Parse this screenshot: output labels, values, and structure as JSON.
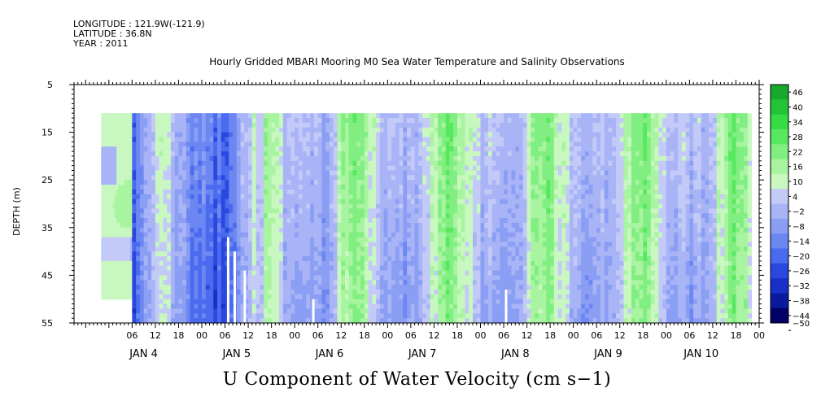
{
  "meta": {
    "longitude": "LONGITUDE : 121.9W(-121.9)",
    "latitude": "LATITUDE : 36.8N",
    "year": "YEAR : 2011"
  },
  "colors": {
    "negative_ramp": [
      "#000066",
      "#0a1a9c",
      "#1830c8",
      "#2a48e0",
      "#4a6af0",
      "#6c86f2",
      "#8a9ef4",
      "#a8b4f6",
      "#c4caf8"
    ],
    "positive_ramp": [
      "#c8f8c0",
      "#a8f4a0",
      "#80ee80",
      "#58e860",
      "#36dc44",
      "#22c436",
      "#18a82c",
      "#108a22",
      "#0a6a18",
      "#054a10"
    ]
  },
  "chart_data": {
    "type": "heatmap",
    "title": "Hourly Gridded MBARI Mooring M0 Sea Water Temperature and Salinity Observations",
    "xlabel": "U Component of Water Velocity (cm s−1)",
    "ylabel": "DEPTH (m)",
    "ylim": [
      55,
      5
    ],
    "y_ticks": [
      5,
      15,
      25,
      35,
      45,
      55
    ],
    "x_hour_ticks": [
      "06",
      "12",
      "18",
      "00",
      "06",
      "12",
      "18",
      "00",
      "06",
      "12",
      "18",
      "00",
      "06",
      "12",
      "18",
      "00",
      "06",
      "12",
      "18",
      "00",
      "06",
      "12",
      "18",
      "00",
      "06",
      "12",
      "18",
      "00",
      "06",
      "12",
      "18",
      "00"
    ],
    "x_day_labels": [
      {
        "label": "JAN   4",
        "hours": 9
      },
      {
        "label": "JAN   5",
        "hours": 33
      },
      {
        "label": "JAN   6",
        "hours": 57
      },
      {
        "label": "JAN   7",
        "hours": 81
      },
      {
        "label": "JAN   8",
        "hours": 105
      },
      {
        "label": "JAN   9",
        "hours": 129
      },
      {
        "label": "JAN  10",
        "hours": 153
      }
    ],
    "x_range_hours": [
      -9,
      168
    ],
    "data_depth_range": [
      11,
      55
    ],
    "colorbar_levels": [
      -50,
      -44,
      -38,
      -32,
      -26,
      -20,
      -14,
      -8,
      -2,
      4,
      10,
      16,
      22,
      28,
      34,
      40,
      46
    ],
    "colorbar_labels": [
      "46",
      "40",
      "34",
      "28",
      "22",
      "16",
      "10",
      "4",
      "−2",
      "−8",
      "−14",
      "−20",
      "−26",
      "−32",
      "−38",
      "−44",
      "−50"
    ],
    "approx_field_cm_s": [
      {
        "day": "JAN 4",
        "hours_00": 0,
        "surface": 4,
        "mid": 8,
        "deep": 4
      },
      {
        "day": "JAN 5",
        "hours_00": 24,
        "surface": -8,
        "mid": -6,
        "deep": -4
      },
      {
        "day": "JAN 6",
        "hours_00": 48,
        "surface": 12,
        "mid": 10,
        "deep": 6
      },
      {
        "day": "JAN 7",
        "hours_00": 72,
        "surface": 14,
        "mid": 12,
        "deep": 4
      },
      {
        "day": "JAN 8",
        "hours_00": 96,
        "surface": 10,
        "mid": 6,
        "deep": -6
      },
      {
        "day": "JAN 9",
        "hours_00": 120,
        "surface": 10,
        "mid": 6,
        "deep": -8
      },
      {
        "day": "JAN 10",
        "hours_00": 144,
        "surface": 8,
        "mid": 6,
        "deep": -4
      }
    ]
  }
}
